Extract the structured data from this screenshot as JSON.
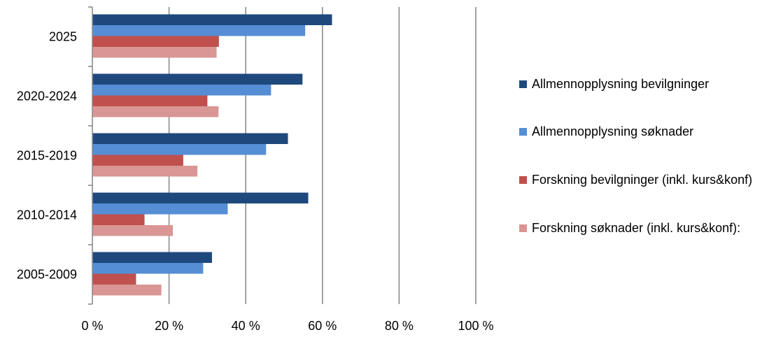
{
  "chart_data": {
    "type": "bar",
    "orientation": "horizontal",
    "categories": [
      "2025",
      "2020-2024",
      "2015-2019",
      "2010-2014",
      "2005-2009"
    ],
    "series": [
      {
        "name": "Allmennopplysning bevilgninger",
        "color": "#1f497d",
        "values": [
          62.5,
          54.8,
          51.0,
          56.3,
          31.2
        ]
      },
      {
        "name": "Allmennopplysning søknader",
        "color": "#558ed5",
        "values": [
          55.5,
          46.6,
          45.3,
          35.3,
          28.9
        ]
      },
      {
        "name": "Forskning bevilgninger (inkl. kurs&konf)",
        "color": "#c0504d",
        "values": [
          33.0,
          30.0,
          23.7,
          13.6,
          11.4
        ]
      },
      {
        "name": "Forskning søknader (inkl. kurs&konf):",
        "color": "#d99694",
        "values": [
          32.4,
          32.9,
          27.4,
          21.0,
          18.0
        ]
      }
    ],
    "x_ticks": [
      "0 %",
      "20 %",
      "40 %",
      "60 %",
      "80 %",
      "100 %"
    ],
    "xlim": [
      0,
      100
    ],
    "gridlines": "vertical",
    "legend_position": "right",
    "title": "",
    "xlabel": "",
    "ylabel": ""
  }
}
